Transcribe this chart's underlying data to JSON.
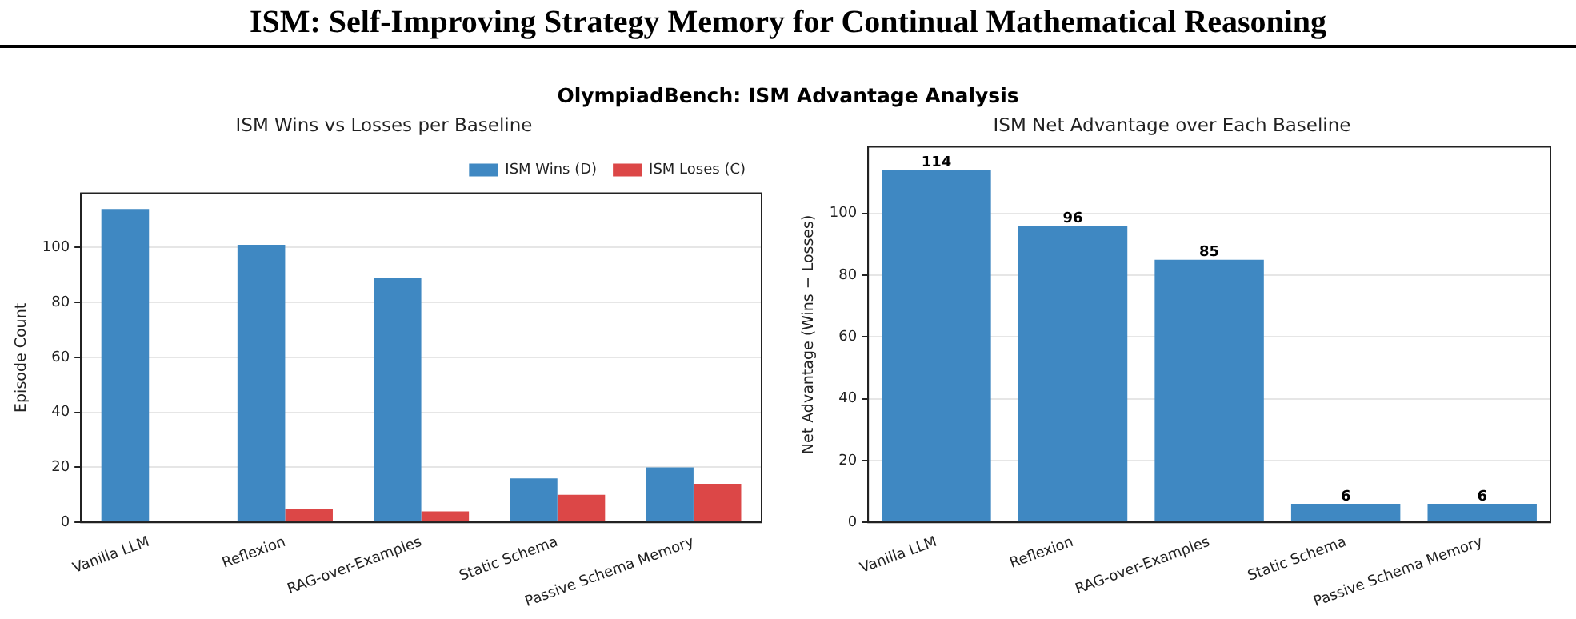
{
  "chart_data": [
    {
      "type": "other",
      "title": "ISM: Self-Improving Strategy Memory for Continual Mathematical Reasoning",
      "subtitle": "OlympiadBench: ISM Advantage Analysis"
    },
    {
      "type": "bar",
      "title": "ISM Wins vs Losses per Baseline",
      "ylabel": "Episode Count",
      "categories": [
        "Vanilla LLM",
        "Reflexion",
        "RAG-over-Examples",
        "Static Schema",
        "Passive Schema Memory"
      ],
      "series": [
        {
          "name": "ISM Wins (D)",
          "color": "#3f88c2",
          "values": [
            114,
            101,
            89,
            16,
            20
          ]
        },
        {
          "name": "ISM Loses (C)",
          "color": "#dc4747",
          "values": [
            0,
            5,
            4,
            10,
            14
          ]
        }
      ],
      "ylim": [
        0,
        119.7
      ],
      "yticks": [
        0,
        20,
        40,
        60,
        80,
        100
      ],
      "grid": "y",
      "legend": "top right"
    },
    {
      "type": "bar",
      "title": "ISM Net Advantage over Each Baseline",
      "ylabel": "Net Advantage (Wins − Losses)",
      "categories": [
        "Vanilla LLM",
        "Reflexion",
        "RAG-over-Examples",
        "Static Schema",
        "Passive Schema Memory"
      ],
      "values": [
        114,
        96,
        85,
        6,
        6
      ],
      "color": "#3f88c2",
      "ylim": [
        0,
        121.5
      ],
      "yticks": [
        0,
        20,
        40,
        60,
        80,
        100
      ],
      "grid": "y",
      "data_labels": true
    }
  ]
}
